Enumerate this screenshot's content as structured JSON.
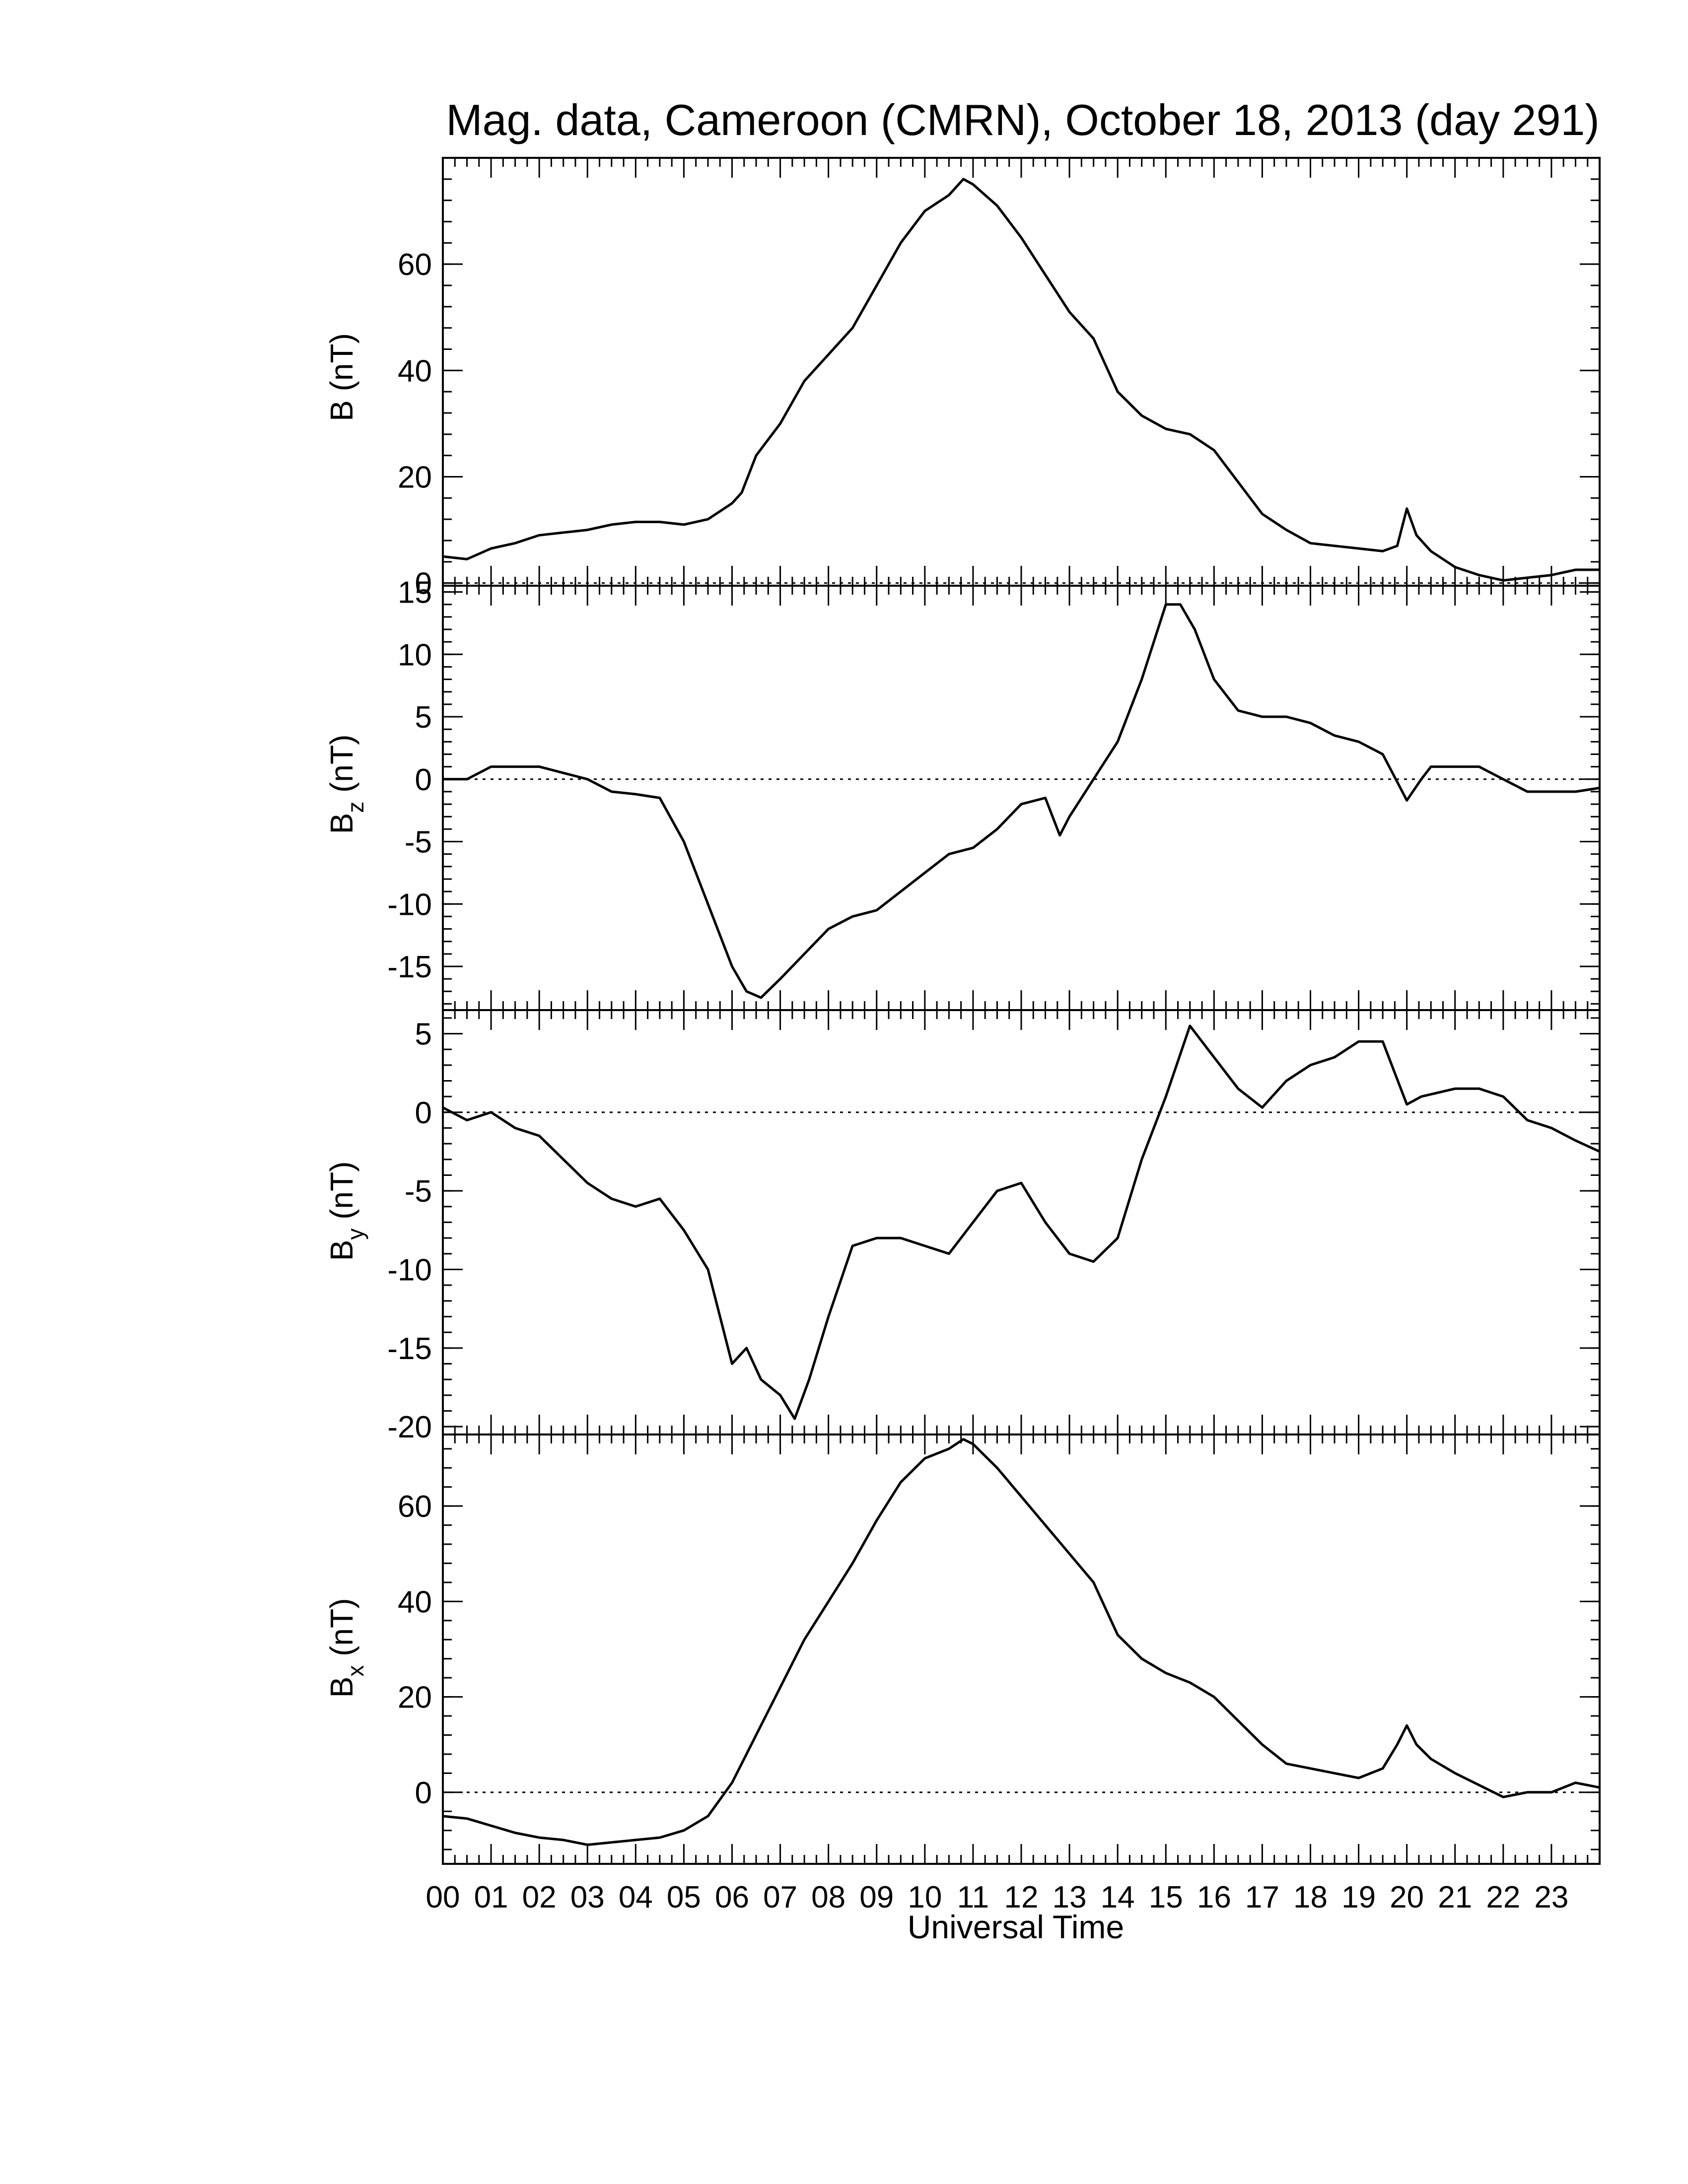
{
  "title": "Mag. data, Cameroon (CMRN), October 18, 2013 (day 291)",
  "xlabel": "Universal Time",
  "line_color": "#000000",
  "chart_data": [
    {
      "type": "line",
      "ylabel": "B (nT)",
      "ylabel_sub": "",
      "ylim": [
        -0.5,
        80
      ],
      "yticks": [
        0,
        20,
        40,
        60
      ],
      "xlim": [
        0,
        24
      ],
      "zero_line": true,
      "grid": false,
      "x": [
        0,
        0.5,
        1,
        1.5,
        2,
        2.5,
        3,
        3.5,
        4,
        4.5,
        5,
        5.5,
        6,
        6.2,
        6.5,
        7,
        7.5,
        8,
        8.5,
        9,
        9.5,
        10,
        10.5,
        10.8,
        11,
        11.5,
        12,
        12.5,
        13,
        13.5,
        14,
        14.5,
        15,
        15.5,
        16,
        16.5,
        17,
        17.5,
        18,
        18.5,
        19,
        19.5,
        19.8,
        20,
        20.2,
        20.5,
        21,
        21.5,
        22,
        22.5,
        23,
        23.5,
        24
      ],
      "values": [
        5,
        4.5,
        6.5,
        7.5,
        9,
        9.5,
        10,
        11,
        11.5,
        11.5,
        11,
        12,
        15,
        17,
        24,
        30,
        38,
        43,
        48,
        56,
        64,
        70,
        73,
        76,
        75,
        71,
        65,
        58,
        51,
        46,
        36,
        31.5,
        29,
        28,
        25,
        19,
        13,
        10,
        7.5,
        7,
        6.5,
        6,
        7,
        14,
        9,
        6,
        3,
        1.5,
        0.5,
        1,
        1.5,
        2.5,
        2.5
      ]
    },
    {
      "type": "line",
      "ylabel": "B",
      "ylabel_sub": "z",
      "ylabel_unit": "(nT)",
      "ylim": [
        -18.5,
        15.5
      ],
      "yticks": [
        15,
        10,
        5,
        0,
        -5,
        -10,
        -15
      ],
      "xlim": [
        0,
        24
      ],
      "zero_line": true,
      "grid": false,
      "x": [
        0,
        0.5,
        1,
        1.5,
        2,
        2.5,
        3,
        3.5,
        4,
        4.5,
        5,
        5.5,
        6,
        6.3,
        6.6,
        7,
        7.5,
        8,
        8.5,
        9,
        9.5,
        10,
        10.5,
        11,
        11.5,
        12,
        12.5,
        12.8,
        13,
        13.5,
        14,
        14.5,
        15,
        15.3,
        15.6,
        16,
        16.5,
        17,
        17.5,
        18,
        18.5,
        19,
        19.5,
        20,
        20.3,
        20.5,
        21,
        21.5,
        22,
        22.5,
        23,
        23.5,
        24
      ],
      "values": [
        0,
        0,
        1,
        1,
        1,
        0.5,
        0,
        -1,
        -1.2,
        -1.5,
        -5,
        -10,
        -15,
        -17,
        -17.5,
        -16,
        -14,
        -12,
        -11,
        -10.5,
        -9,
        -7.5,
        -6,
        -5.5,
        -4,
        -2,
        -1.5,
        -4.5,
        -3,
        0,
        3,
        8,
        14,
        14,
        12,
        8,
        5.5,
        5,
        5,
        4.5,
        3.5,
        3,
        2,
        -1.7,
        0,
        1,
        1,
        1,
        0,
        -1,
        -1,
        -1,
        -0.7
      ]
    },
    {
      "type": "line",
      "ylabel": "B",
      "ylabel_sub": "y",
      "ylabel_unit": "(nT)",
      "ylim": [
        -20.5,
        6.5
      ],
      "yticks": [
        5,
        0,
        -5,
        -10,
        -15,
        -20
      ],
      "xlim": [
        0,
        24
      ],
      "zero_line": true,
      "grid": false,
      "x": [
        0,
        0.5,
        1,
        1.5,
        2,
        2.5,
        3,
        3.5,
        4,
        4.5,
        5,
        5.5,
        6,
        6.3,
        6.6,
        7,
        7.3,
        7.6,
        8,
        8.5,
        9,
        9.5,
        10,
        10.5,
        11,
        11.5,
        12,
        12.5,
        13,
        13.5,
        14,
        14.5,
        15,
        15.5,
        16,
        16.5,
        17,
        17.5,
        18,
        18.5,
        19,
        19.5,
        20,
        20.3,
        21,
        21.5,
        22,
        22.5,
        23,
        23.5,
        24
      ],
      "values": [
        0.3,
        -0.5,
        0,
        -1,
        -1.5,
        -3,
        -4.5,
        -5.5,
        -6,
        -5.5,
        -7.5,
        -10,
        -16,
        -15,
        -17,
        -18,
        -19.5,
        -17,
        -13,
        -8.5,
        -8,
        -8,
        -8.5,
        -9,
        -7,
        -5,
        -4.5,
        -7,
        -9,
        -9.5,
        -8,
        -3,
        1,
        5.5,
        3.5,
        1.5,
        0.3,
        2,
        3,
        3.5,
        4.5,
        4.5,
        0.5,
        1,
        1.5,
        1.5,
        1,
        -0.5,
        -1,
        -1.8,
        -2.5
      ]
    },
    {
      "type": "line",
      "ylabel": "B",
      "ylabel_sub": "x",
      "ylabel_unit": "(nT)",
      "ylim": [
        -15,
        75
      ],
      "yticks": [
        0,
        20,
        40,
        60
      ],
      "xlim": [
        0,
        24
      ],
      "zero_line": true,
      "grid": false,
      "x": [
        0,
        0.5,
        1,
        1.5,
        2,
        2.5,
        3,
        3.5,
        4,
        4.5,
        5,
        5.5,
        6,
        6.5,
        7,
        7.5,
        8,
        8.5,
        9,
        9.5,
        10,
        10.5,
        10.8,
        11,
        11.5,
        12,
        12.5,
        13,
        13.5,
        14,
        14.5,
        15,
        15.5,
        16,
        16.5,
        17,
        17.5,
        18,
        18.5,
        19,
        19.5,
        19.8,
        20,
        20.2,
        20.5,
        21,
        21.5,
        22,
        22.5,
        23,
        23.5,
        24
      ],
      "values": [
        -5,
        -5.5,
        -7,
        -8.5,
        -9.5,
        -10,
        -11,
        -10.5,
        -10,
        -9.5,
        -8,
        -5,
        2,
        12,
        22,
        32,
        40,
        48,
        57,
        65,
        70,
        72,
        74,
        73,
        68,
        62,
        56,
        50,
        44,
        33,
        28,
        25,
        23,
        20,
        15,
        10,
        6,
        5,
        4,
        3,
        5,
        10,
        14,
        10,
        7,
        4,
        1.5,
        -1,
        0,
        0,
        2,
        1
      ]
    }
  ],
  "xticks": [
    "00",
    "01",
    "02",
    "03",
    "04",
    "05",
    "06",
    "07",
    "08",
    "09",
    "10",
    "11",
    "12",
    "13",
    "14",
    "15",
    "16",
    "17",
    "18",
    "19",
    "20",
    "21",
    "22",
    "23"
  ]
}
